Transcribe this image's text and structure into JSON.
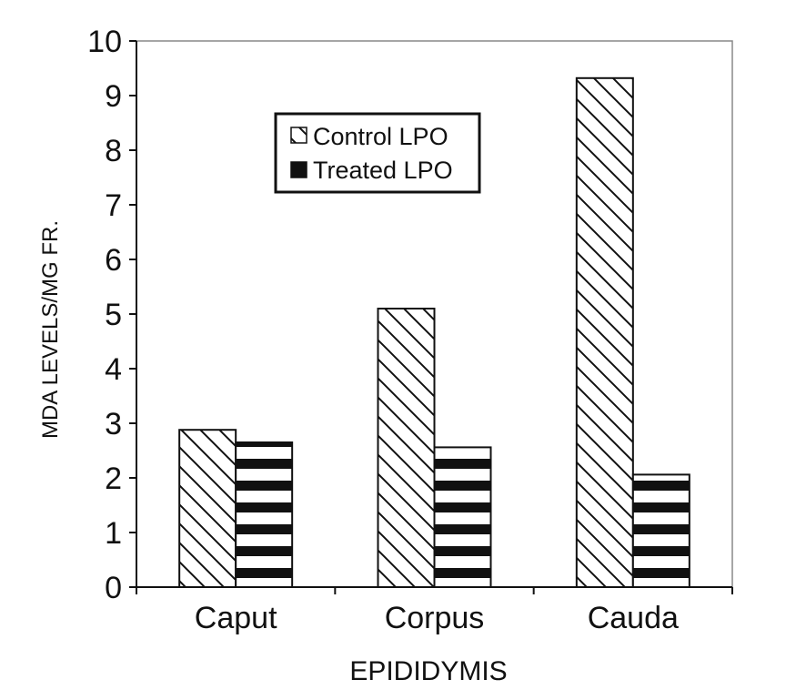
{
  "chart_data": {
    "type": "bar",
    "categories": [
      "Caput",
      "Corpus",
      "Cauda"
    ],
    "series": [
      {
        "name": "Control LPO",
        "values": [
          2.88,
          5.1,
          9.32
        ],
        "pattern": "diagonal-hatch"
      },
      {
        "name": "Treated LPO",
        "values": [
          2.65,
          2.56,
          2.06
        ],
        "pattern": "horizontal-stripes"
      }
    ],
    "title": "",
    "xlabel": "EPIDIDYMIS",
    "ylabel": "MDA LEVELS/MG FR.",
    "ylim": [
      0,
      10
    ],
    "yticks": [
      "0",
      "1",
      "2",
      "3",
      "4",
      "5",
      "6",
      "7",
      "8",
      "9",
      "10"
    ],
    "grid": false,
    "legend_position": "top-center",
    "colors": {
      "ink": "#111111",
      "background": "#ffffff",
      "axis": "#888888"
    }
  }
}
